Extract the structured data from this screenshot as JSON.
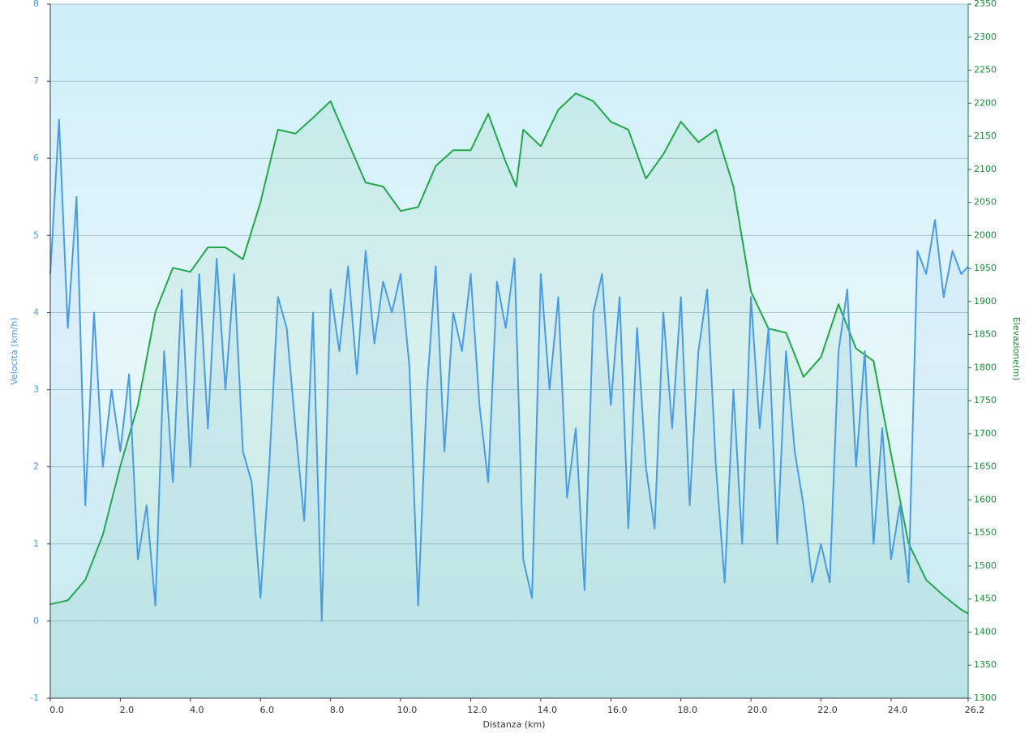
{
  "chart_data": {
    "type": "line",
    "xlabel": "Distanza  (km)",
    "ylabel": "Velocità (km/h)",
    "y2label": "Elevazione(m)",
    "xlim": [
      0,
      26.2
    ],
    "ylim": [
      -1,
      8
    ],
    "y2lim": [
      1300,
      2350
    ],
    "xticks": [
      {
        "value": 0,
        "label": "0.0"
      },
      {
        "value": 2,
        "label": "2.0"
      },
      {
        "value": 4,
        "label": "4.0"
      },
      {
        "value": 6,
        "label": "6.0"
      },
      {
        "value": 8,
        "label": "8.0"
      },
      {
        "value": 10,
        "label": "10.0"
      },
      {
        "value": 12,
        "label": "12.0"
      },
      {
        "value": 14,
        "label": "14.0"
      },
      {
        "value": 16,
        "label": "16.0"
      },
      {
        "value": 18,
        "label": "18.0"
      },
      {
        "value": 20,
        "label": "20.0"
      },
      {
        "value": 22,
        "label": "22.0"
      },
      {
        "value": 24,
        "label": "24.0"
      },
      26.2
    ],
    "yticks": [
      -1,
      0,
      1,
      2,
      3,
      4,
      5,
      6,
      7,
      8
    ],
    "y2ticks": [
      1300,
      1350,
      1400,
      1450,
      1500,
      1550,
      1600,
      1650,
      1700,
      1750,
      1800,
      1850,
      1900,
      1950,
      2000,
      2050,
      2100,
      2150,
      2200,
      2250,
      2300,
      2350
    ],
    "grid": true,
    "series": [
      {
        "name": "Elevazione",
        "color": "#22a84a",
        "axis": "y2",
        "x": [
          0,
          0.5,
          1,
          1.5,
          2,
          2.5,
          3,
          3.5,
          4,
          4.5,
          5,
          5.5,
          6,
          6.5,
          7,
          7.5,
          8,
          8.5,
          9,
          9.5,
          10,
          10.5,
          11,
          11.5,
          12,
          12.5,
          13,
          13.3,
          13.5,
          14,
          14.5,
          15,
          15.5,
          16,
          16.5,
          17,
          17.5,
          18,
          18.5,
          19,
          19.5,
          20,
          20.5,
          21,
          21.5,
          22,
          22.5,
          23,
          23.5,
          24,
          24.5,
          25,
          25.5,
          26,
          26.2
        ],
        "values": [
          1442,
          1448,
          1479,
          1547,
          1651,
          1743,
          1884,
          1951,
          1945,
          1982,
          1982,
          1964,
          2050,
          2160,
          2154,
          2178,
          2203,
          2141,
          2080,
          2074,
          2037,
          2043,
          2105,
          2129,
          2129,
          2184,
          2111,
          2074,
          2160,
          2135,
          2190,
          2215,
          2203,
          2172,
          2160,
          2086,
          2123,
          2172,
          2141,
          2160,
          2074,
          1915,
          1859,
          1853,
          1786,
          1816,
          1896,
          1829,
          1810,
          1669,
          1534,
          1479,
          1455,
          1434,
          1428
        ]
      },
      {
        "name": "Velocità",
        "color": "#4a9be6",
        "x": [
          0,
          0.25,
          0.5,
          0.75,
          1,
          1.25,
          1.5,
          1.75,
          2,
          2.25,
          2.5,
          2.75,
          3,
          3.25,
          3.5,
          3.75,
          4,
          4.25,
          4.5,
          4.75,
          5,
          5.25,
          5.5,
          5.75,
          6,
          6.25,
          6.5,
          6.75,
          7,
          7.25,
          7.5,
          7.75,
          8,
          8.25,
          8.5,
          8.75,
          9,
          9.25,
          9.5,
          9.75,
          10,
          10.25,
          10.5,
          10.75,
          11,
          11.25,
          11.5,
          11.75,
          12,
          12.25,
          12.5,
          12.75,
          13,
          13.25,
          13.5,
          13.75,
          14,
          14.25,
          14.5,
          14.75,
          15,
          15.25,
          15.5,
          15.75,
          16,
          16.25,
          16.5,
          16.75,
          17,
          17.25,
          17.5,
          17.75,
          18,
          18.25,
          18.5,
          18.75,
          19,
          19.25,
          19.5,
          19.75,
          20,
          20.25,
          20.5,
          20.75,
          21,
          21.25,
          21.5,
          21.75,
          22,
          22.25,
          22.5,
          22.75,
          23,
          23.25,
          23.5,
          23.75,
          24,
          24.25,
          24.5,
          24.75,
          25,
          25.25,
          25.5,
          25.75,
          26,
          26.2
        ],
        "values": [
          4.5,
          6.5,
          3.8,
          5.5,
          1.5,
          4.0,
          2.0,
          3.0,
          2.2,
          3.2,
          0.8,
          1.5,
          0.2,
          3.5,
          1.8,
          4.3,
          2.0,
          4.5,
          2.5,
          4.7,
          3.0,
          4.5,
          2.2,
          1.8,
          0.3,
          2.0,
          4.2,
          3.8,
          2.5,
          1.3,
          4.0,
          0.0,
          4.3,
          3.5,
          4.6,
          3.2,
          4.8,
          3.6,
          4.4,
          4.0,
          4.5,
          3.3,
          0.2,
          3.0,
          4.6,
          2.2,
          4.0,
          3.5,
          4.5,
          2.8,
          1.8,
          4.4,
          3.8,
          4.7,
          0.8,
          0.3,
          4.5,
          3.0,
          4.2,
          1.6,
          2.5,
          0.4,
          4.0,
          4.5,
          2.8,
          4.2,
          1.2,
          3.8,
          2.0,
          1.2,
          4.0,
          2.5,
          4.2,
          1.5,
          3.5,
          4.3,
          2.0,
          0.5,
          3.0,
          1.0,
          4.2,
          2.5,
          3.8,
          1.0,
          3.5,
          2.2,
          1.5,
          0.5,
          1.0,
          0.5,
          3.5,
          4.3,
          2.0,
          3.5,
          1.0,
          2.5,
          0.8,
          1.5,
          0.5,
          4.8,
          4.5,
          5.2,
          4.2,
          4.8,
          4.5,
          4.6
        ]
      }
    ]
  }
}
